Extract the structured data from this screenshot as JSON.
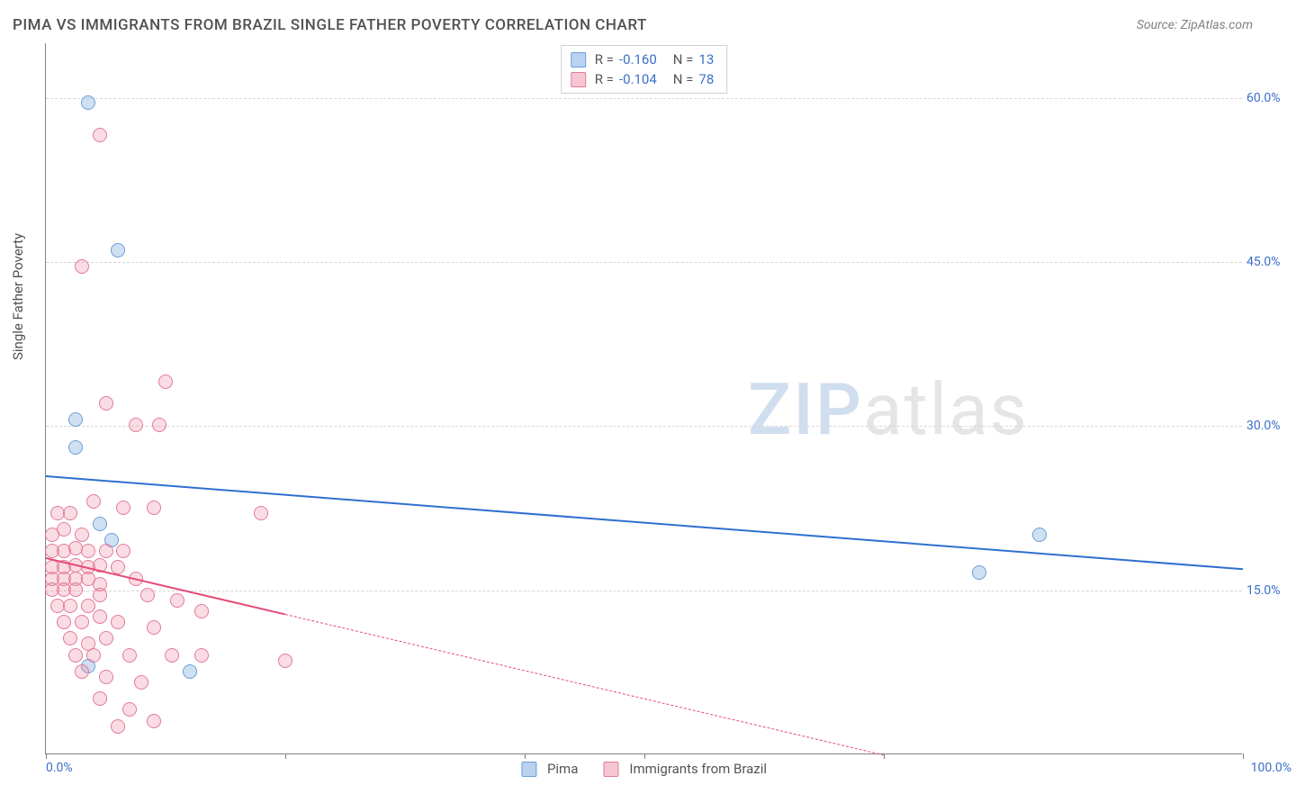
{
  "header": {
    "title": "PIMA VS IMMIGRANTS FROM BRAZIL SINGLE FATHER POVERTY CORRELATION CHART",
    "source": "Source: ZipAtlas.com"
  },
  "chart": {
    "type": "scatter",
    "ylabel": "Single Father Poverty",
    "xlim": [
      0,
      100
    ],
    "ylim": [
      0,
      65
    ],
    "yticks": [
      {
        "v": 15,
        "label": "15.0%"
      },
      {
        "v": 30,
        "label": "30.0%"
      },
      {
        "v": 45,
        "label": "45.0%"
      },
      {
        "v": 60,
        "label": "60.0%"
      }
    ],
    "xticks": [
      0,
      20,
      40,
      50,
      70,
      100
    ],
    "xmin_label": "0.0%",
    "xmax_label": "100.0%",
    "background_color": "#ffffff",
    "grid_color": "#d8d8d8",
    "point_radius": 8,
    "series": [
      {
        "name": "Pima",
        "fill": "rgba(120,165,220,0.35)",
        "stroke": "#6a9ed8",
        "swatch_fill": "#b9d2f0",
        "swatch_stroke": "#6a9ed8",
        "trend_color": "#2f6fd0",
        "R": "-0.160",
        "N": "13",
        "trend": {
          "x1": 0,
          "y1": 25.5,
          "x2": 100,
          "y2": 17.0,
          "dashed_from_x": null
        },
        "points": [
          {
            "x": 3.5,
            "y": 59.5
          },
          {
            "x": 6.0,
            "y": 46.0
          },
          {
            "x": 2.5,
            "y": 30.5
          },
          {
            "x": 2.5,
            "y": 28.0
          },
          {
            "x": 4.5,
            "y": 21.0
          },
          {
            "x": 5.5,
            "y": 19.5
          },
          {
            "x": 3.5,
            "y": 8.0
          },
          {
            "x": 12.0,
            "y": 7.5
          },
          {
            "x": 78.0,
            "y": 16.5
          },
          {
            "x": 83.0,
            "y": 20.0
          }
        ]
      },
      {
        "name": "Immigrants from Brazil",
        "fill": "rgba(240,140,165,0.30)",
        "stroke": "#e27a98",
        "swatch_fill": "#f6c6d3",
        "swatch_stroke": "#e27a98",
        "trend_color": "#e64b77",
        "R": "-0.104",
        "N": "78",
        "trend": {
          "x1": 0,
          "y1": 18.0,
          "x2": 70,
          "y2": 0.0,
          "dashed_from_x": 20
        },
        "points": [
          {
            "x": 4.5,
            "y": 56.5
          },
          {
            "x": 3.0,
            "y": 44.5
          },
          {
            "x": 10.0,
            "y": 34.0
          },
          {
            "x": 5.0,
            "y": 32.0
          },
          {
            "x": 7.5,
            "y": 30.0
          },
          {
            "x": 9.5,
            "y": 30.0
          },
          {
            "x": 1.0,
            "y": 22.0
          },
          {
            "x": 2.0,
            "y": 22.0
          },
          {
            "x": 4.0,
            "y": 23.0
          },
          {
            "x": 6.5,
            "y": 22.5
          },
          {
            "x": 9.0,
            "y": 22.5
          },
          {
            "x": 18.0,
            "y": 22.0
          },
          {
            "x": 0.5,
            "y": 20.0
          },
          {
            "x": 1.5,
            "y": 20.5
          },
          {
            "x": 3.0,
            "y": 20.0
          },
          {
            "x": 0.5,
            "y": 18.5
          },
          {
            "x": 1.5,
            "y": 18.5
          },
          {
            "x": 2.5,
            "y": 18.8
          },
          {
            "x": 3.5,
            "y": 18.5
          },
          {
            "x": 5.0,
            "y": 18.5
          },
          {
            "x": 6.5,
            "y": 18.5
          },
          {
            "x": 0.5,
            "y": 17.0
          },
          {
            "x": 1.5,
            "y": 17.0
          },
          {
            "x": 2.5,
            "y": 17.2
          },
          {
            "x": 3.5,
            "y": 17.0
          },
          {
            "x": 4.5,
            "y": 17.2
          },
          {
            "x": 6.0,
            "y": 17.0
          },
          {
            "x": 0.5,
            "y": 16.0
          },
          {
            "x": 1.5,
            "y": 16.0
          },
          {
            "x": 2.5,
            "y": 16.0
          },
          {
            "x": 3.5,
            "y": 16.0
          },
          {
            "x": 4.5,
            "y": 15.5
          },
          {
            "x": 7.5,
            "y": 16.0
          },
          {
            "x": 0.5,
            "y": 15.0
          },
          {
            "x": 1.5,
            "y": 15.0
          },
          {
            "x": 2.5,
            "y": 15.0
          },
          {
            "x": 4.5,
            "y": 14.5
          },
          {
            "x": 8.5,
            "y": 14.5
          },
          {
            "x": 11.0,
            "y": 14.0
          },
          {
            "x": 1.0,
            "y": 13.5
          },
          {
            "x": 2.0,
            "y": 13.5
          },
          {
            "x": 3.5,
            "y": 13.5
          },
          {
            "x": 1.5,
            "y": 12.0
          },
          {
            "x": 3.0,
            "y": 12.0
          },
          {
            "x": 4.5,
            "y": 12.5
          },
          {
            "x": 6.0,
            "y": 12.0
          },
          {
            "x": 9.0,
            "y": 11.5
          },
          {
            "x": 13.0,
            "y": 13.0
          },
          {
            "x": 2.0,
            "y": 10.5
          },
          {
            "x": 3.5,
            "y": 10.0
          },
          {
            "x": 5.0,
            "y": 10.5
          },
          {
            "x": 2.5,
            "y": 9.0
          },
          {
            "x": 4.0,
            "y": 9.0
          },
          {
            "x": 7.0,
            "y": 9.0
          },
          {
            "x": 10.5,
            "y": 9.0
          },
          {
            "x": 13.0,
            "y": 9.0
          },
          {
            "x": 20.0,
            "y": 8.5
          },
          {
            "x": 3.0,
            "y": 7.5
          },
          {
            "x": 5.0,
            "y": 7.0
          },
          {
            "x": 8.0,
            "y": 6.5
          },
          {
            "x": 4.5,
            "y": 5.0
          },
          {
            "x": 7.0,
            "y": 4.0
          },
          {
            "x": 9.0,
            "y": 3.0
          },
          {
            "x": 6.0,
            "y": 2.5
          }
        ]
      }
    ]
  },
  "legend": {
    "r_label": "R =",
    "n_label": "N ="
  },
  "watermark": {
    "part1": "ZIP",
    "part2": "atlas"
  }
}
